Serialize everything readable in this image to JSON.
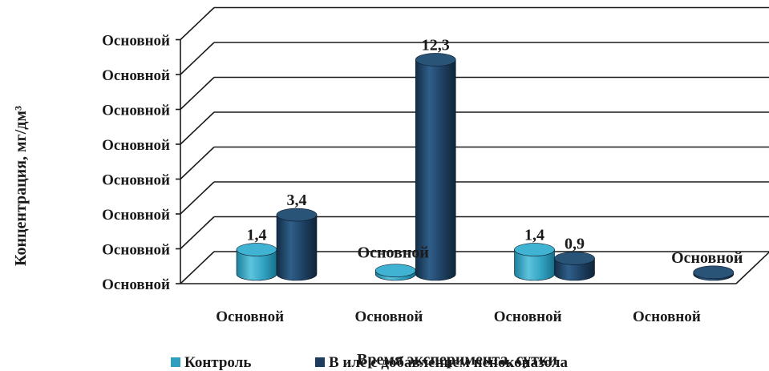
{
  "chart_data": {
    "type": "bar",
    "categories": [
      "Основной",
      "Основной",
      "Основной",
      "Основной"
    ],
    "series": [
      {
        "name": "Контроль",
        "values": [
          1.4,
          0.2,
          1.4,
          null
        ],
        "labels": [
          "1,4",
          "Основной",
          "1,4",
          ""
        ]
      },
      {
        "name": "В иле с добавлением пеноконазола",
        "values": [
          3.4,
          12.3,
          0.9,
          0.1
        ],
        "labels": [
          "3,4",
          "12,3",
          "0,9",
          "Основной"
        ]
      }
    ],
    "y_tick_labels": [
      "Основной",
      "Основной",
      "Основной",
      "Основной",
      "Основной",
      "Основной",
      "Основной",
      "Основной"
    ],
    "ylim": [
      0,
      14
    ],
    "xlabel": "Время эксперимента, сутки",
    "ylabel": "Концентрация, мг/дм³",
    "grid": true,
    "legend_position": "bottom",
    "colors": {
      "series1": "#2f9fbf",
      "series2": "#1c3d5e",
      "grid": "#1a1a1a"
    }
  }
}
